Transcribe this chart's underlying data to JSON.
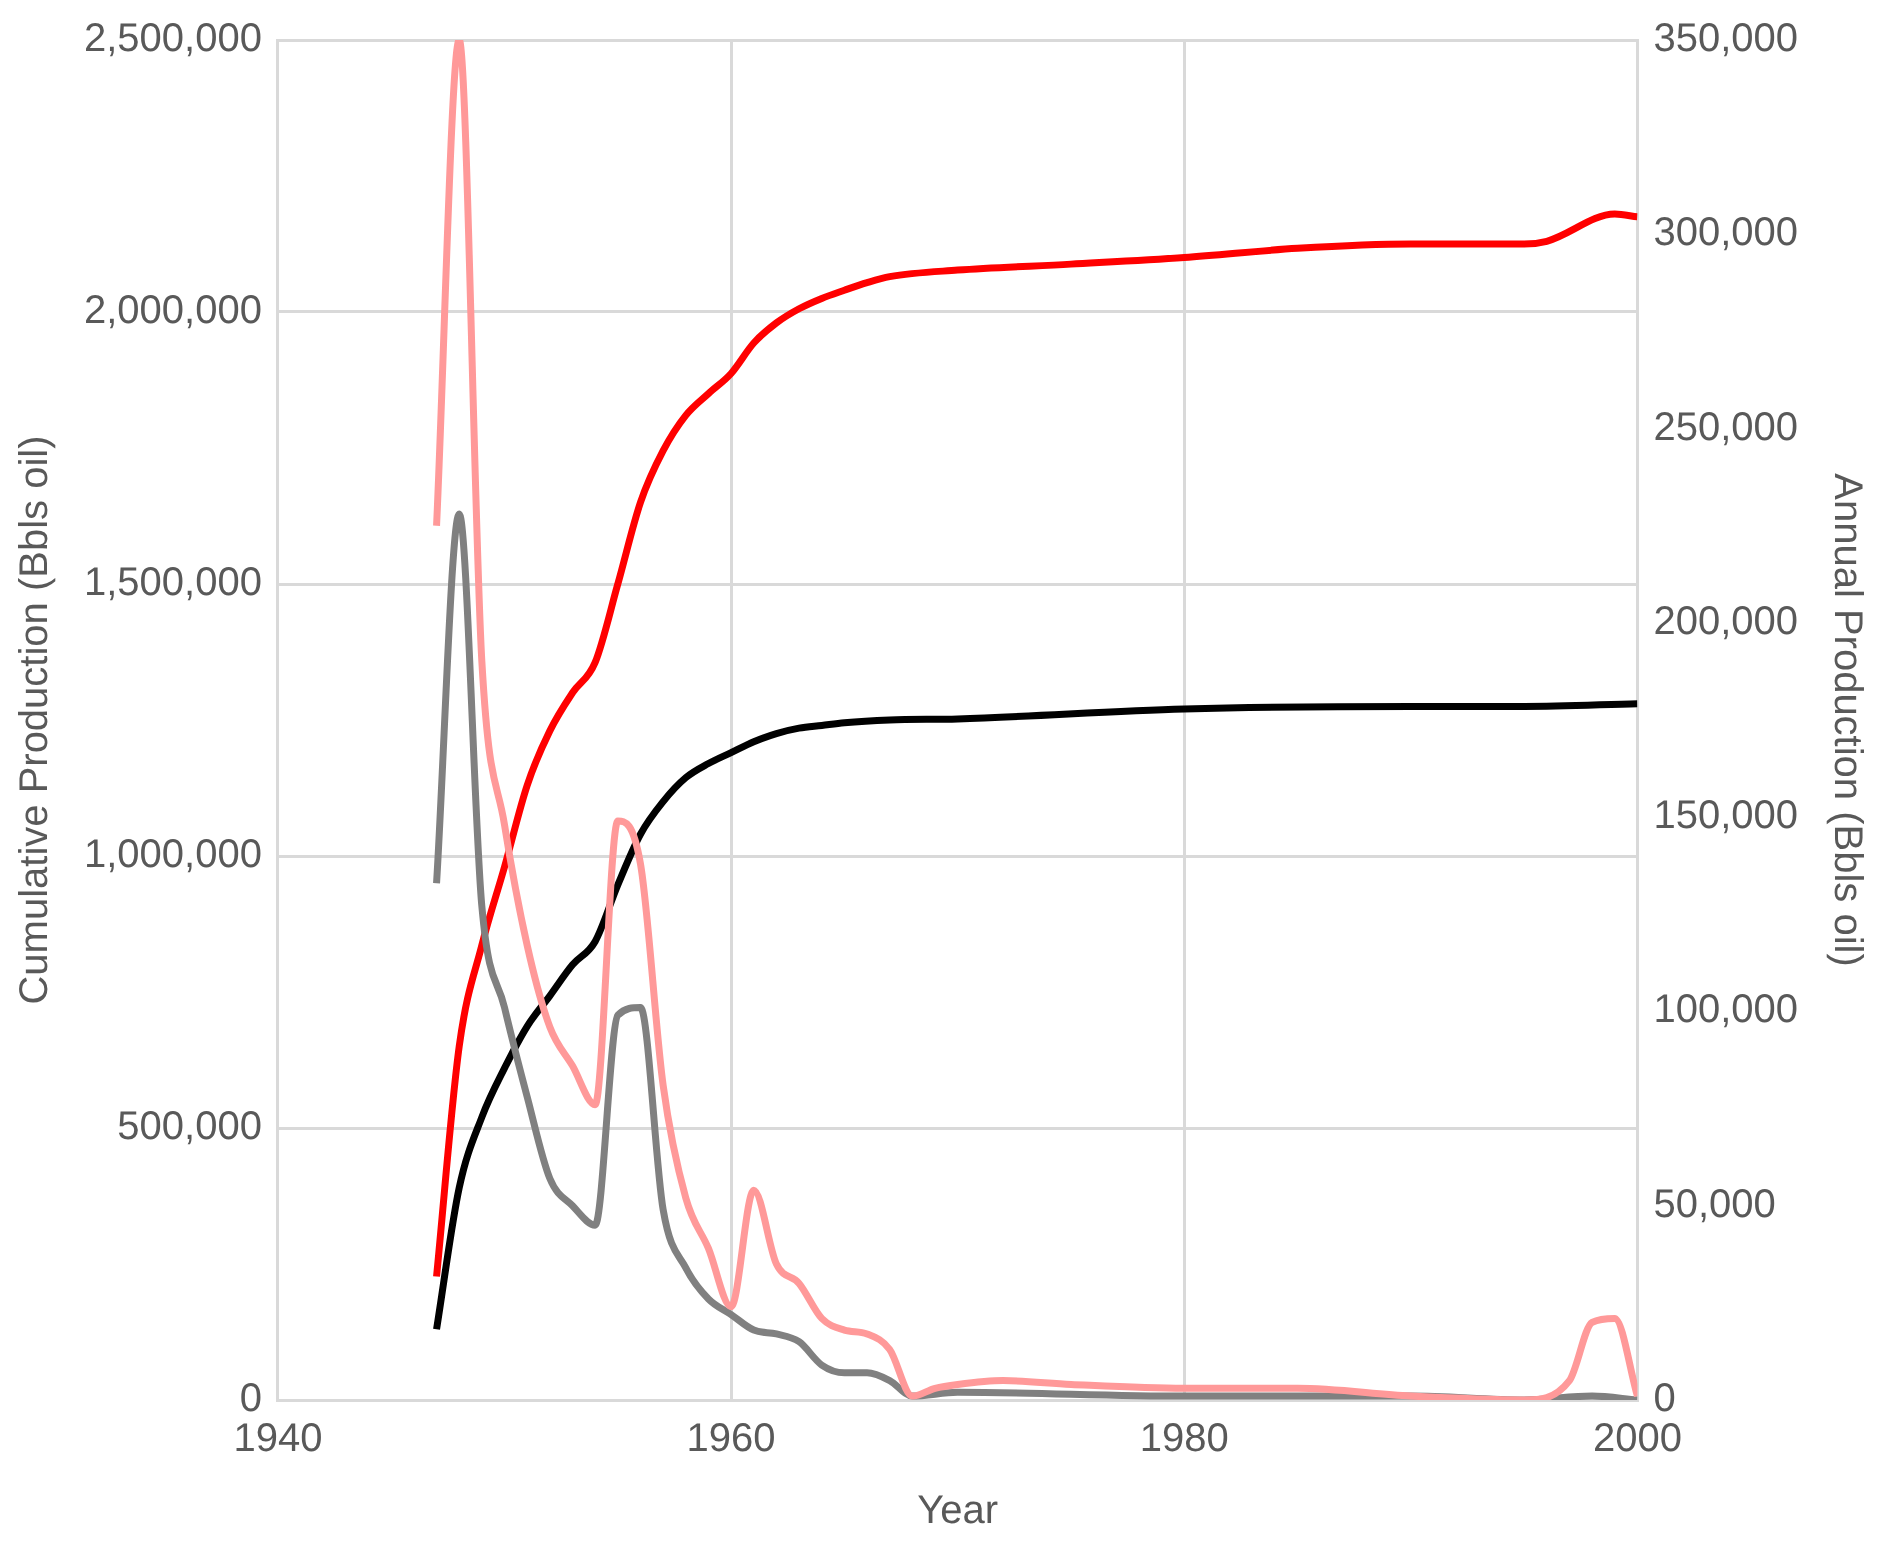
{
  "chart_data": {
    "type": "line",
    "xlabel": "Year",
    "ylabel": "Cumulative Production (Bbls oil)",
    "y2label": "Annual Production (Bbls oil)",
    "xlim": [
      1940,
      2000
    ],
    "xticks": [
      1940,
      1960,
      1980,
      2000
    ],
    "ylim": [
      0,
      2500000
    ],
    "yticks": [
      {
        "value": 0,
        "label": "0"
      },
      {
        "value": 500000,
        "label": "500,000"
      },
      {
        "value": 1000000,
        "label": "1,000,000"
      },
      {
        "value": 1500000,
        "label": "1,500,000"
      },
      {
        "value": 2000000,
        "label": "2,000,000"
      },
      {
        "value": 2500000,
        "label": "2,500,000"
      }
    ],
    "y2lim": [
      0,
      350000
    ],
    "y2ticks": [
      {
        "value": 0,
        "label": "0"
      },
      {
        "value": 50000,
        "label": "50,000"
      },
      {
        "value": 100000,
        "label": "100,000"
      },
      {
        "value": 150000,
        "label": "150,000"
      },
      {
        "value": 200000,
        "label": "200,000"
      },
      {
        "value": 250000,
        "label": "250,000"
      },
      {
        "value": 300000,
        "label": "300,000"
      },
      {
        "value": 350000,
        "label": "350,000"
      }
    ],
    "grid": true,
    "legend": false,
    "marker": "none",
    "line_style": "solid",
    "series": [
      {
        "color": "#ff9999",
        "axis": "y2",
        "x": [
          1947,
          1948,
          1949,
          1950,
          1951,
          1952,
          1953,
          1954,
          1955,
          1956,
          1957,
          1958,
          1959,
          1960,
          1961,
          1962,
          1963,
          1964,
          1965,
          1966,
          1967,
          1968,
          1969,
          1970,
          1972,
          1975,
          1980,
          1985,
          1990,
          1995,
          1997,
          1998,
          1999,
          2000
        ],
        "values": [
          225000,
          350000,
          190000,
          148000,
          117000,
          96000,
          86000,
          76000,
          149000,
          138000,
          81000,
          52000,
          39000,
          24000,
          54000,
          35000,
          30000,
          21000,
          18000,
          17000,
          13000,
          1000,
          3000,
          4000,
          5000,
          4000,
          3000,
          3000,
          1000,
          0,
          5000,
          20000,
          21000,
          1000
        ]
      },
      {
        "color": "#808080",
        "axis": "y2",
        "x": [
          1947,
          1948,
          1949,
          1950,
          1951,
          1952,
          1953,
          1954,
          1955,
          1956,
          1957,
          1958,
          1959,
          1960,
          1961,
          1962,
          1963,
          1964,
          1965,
          1966,
          1967,
          1968,
          1970,
          1980,
          1990,
          1995,
          1998,
          2000
        ],
        "values": [
          133000,
          228000,
          127000,
          101000,
          78000,
          57000,
          50000,
          45000,
          99000,
          101000,
          49000,
          34000,
          26000,
          22000,
          18000,
          17000,
          15000,
          9000,
          7000,
          7000,
          5000,
          1000,
          2000,
          1000,
          1000,
          0,
          1000,
          0
        ]
      },
      {
        "color": "#ff0000",
        "x": [
          1947,
          1948,
          1949,
          1950,
          1951,
          1952,
          1953,
          1954,
          1955,
          1956,
          1957,
          1958,
          1959,
          1960,
          1961,
          1962,
          1963,
          1964,
          1965,
          1966,
          1967,
          1970,
          1975,
          1980,
          1985,
          1990,
          1995,
          1996,
          1999,
          2000
        ],
        "values": [
          227000,
          650000,
          836000,
          980000,
          1130000,
          1230000,
          1300000,
          1356000,
          1500000,
          1650000,
          1745000,
          1810000,
          1850000,
          1887000,
          1943000,
          1980000,
          2006000,
          2025000,
          2040000,
          2054000,
          2065000,
          2077000,
          2088000,
          2100000,
          2117000,
          2125000,
          2125000,
          2130000,
          2180000,
          2175000
        ]
      },
      {
        "color": "#000000",
        "x": [
          1947,
          1948,
          1949,
          1950,
          1951,
          1952,
          1953,
          1954,
          1955,
          1956,
          1957,
          1958,
          1959,
          1960,
          1961,
          1962,
          1963,
          1964,
          1965,
          1967,
          1970,
          1980,
          1990,
          1995,
          2000
        ],
        "values": [
          130000,
          390000,
          520000,
          610000,
          687000,
          743000,
          800000,
          843000,
          947000,
          1040000,
          1100000,
          1144000,
          1170000,
          1190000,
          1210000,
          1225000,
          1235000,
          1240000,
          1245000,
          1250000,
          1252000,
          1270000,
          1275000,
          1275000,
          1280000
        ]
      }
    ]
  }
}
